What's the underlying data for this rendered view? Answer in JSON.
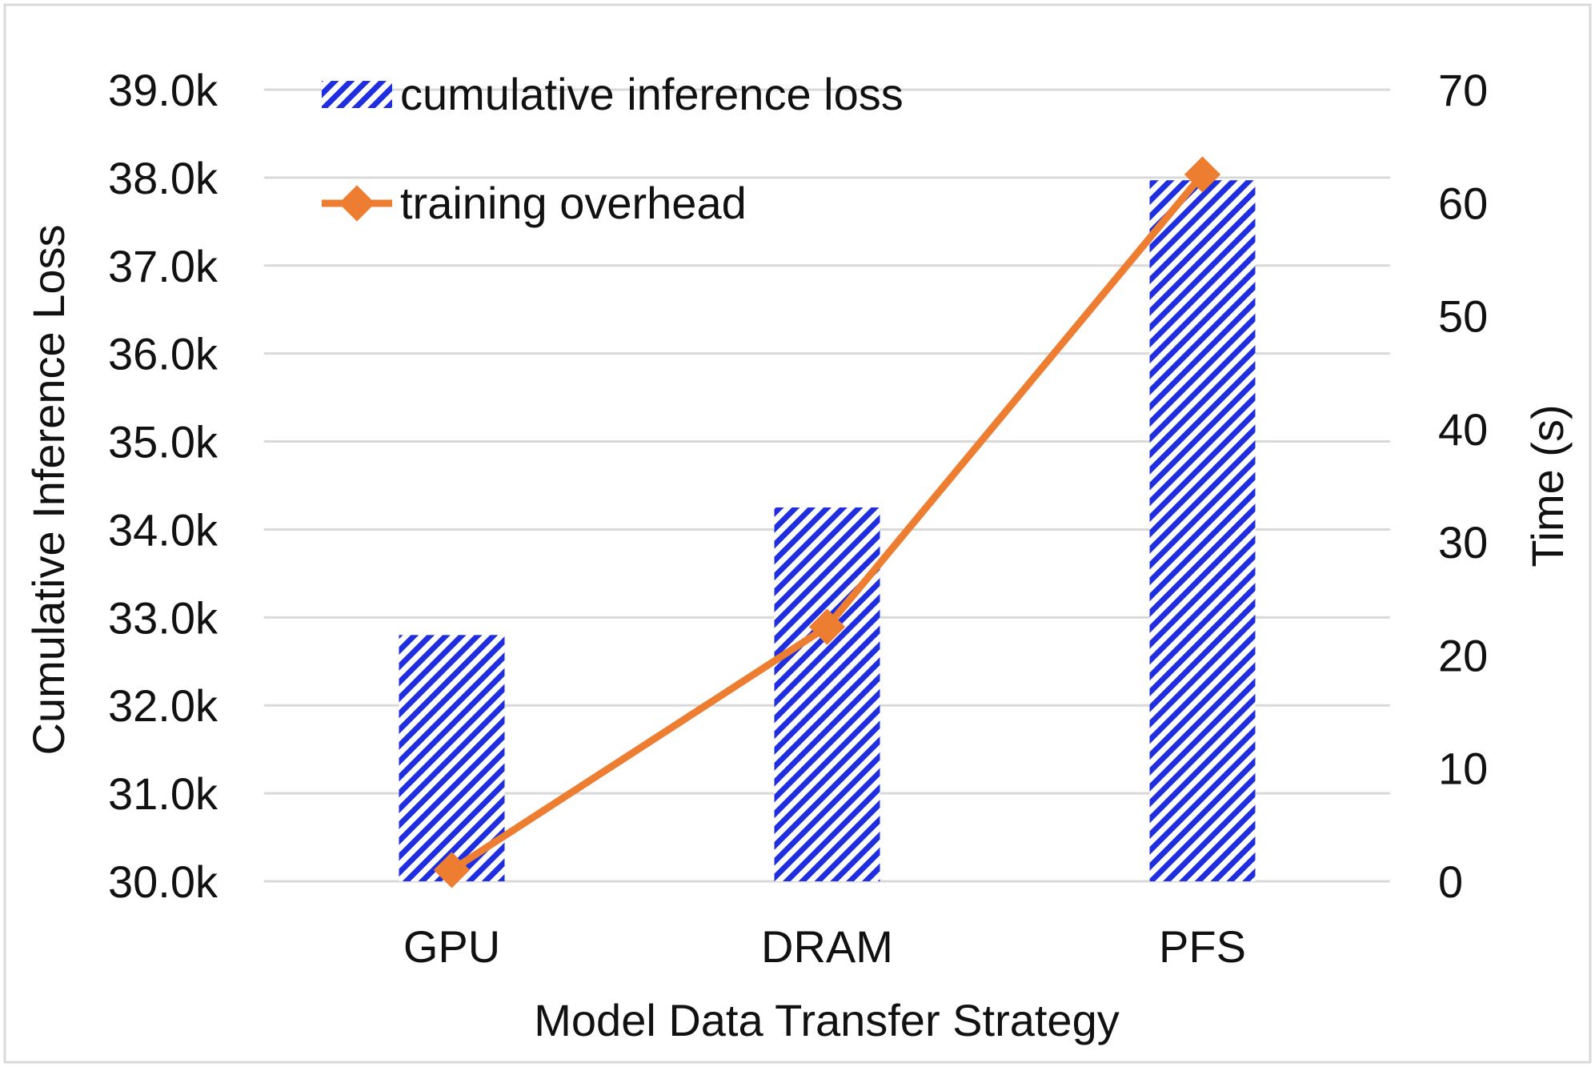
{
  "chart_data": {
    "type": "bar+line",
    "categories": [
      "GPU",
      "DRAM",
      "PFS"
    ],
    "series": [
      {
        "name": "cumulative inference loss",
        "type": "bar",
        "axis": "left",
        "values": [
          32800,
          34250,
          37970
        ],
        "color": "#1f2fe0"
      },
      {
        "name": "training overhead",
        "type": "line",
        "axis": "right",
        "values": [
          1,
          22.5,
          62.5
        ],
        "color": "#ed7d31"
      }
    ],
    "xlabel": "Model Data Transfer Strategy",
    "ylabel_left": "Cumulative Inference Loss",
    "ylabel_right": "Time (s)",
    "ylim_left": [
      30000,
      39000
    ],
    "ylim_right": [
      0,
      70
    ],
    "yticks_left": [
      "30.0k",
      "31.0k",
      "32.0k",
      "33.0k",
      "34.0k",
      "35.0k",
      "36.0k",
      "37.0k",
      "38.0k",
      "39.0k"
    ],
    "yticks_right": [
      "0",
      "10",
      "20",
      "30",
      "40",
      "50",
      "60",
      "70"
    ],
    "grid": true,
    "legend": "top-left"
  }
}
